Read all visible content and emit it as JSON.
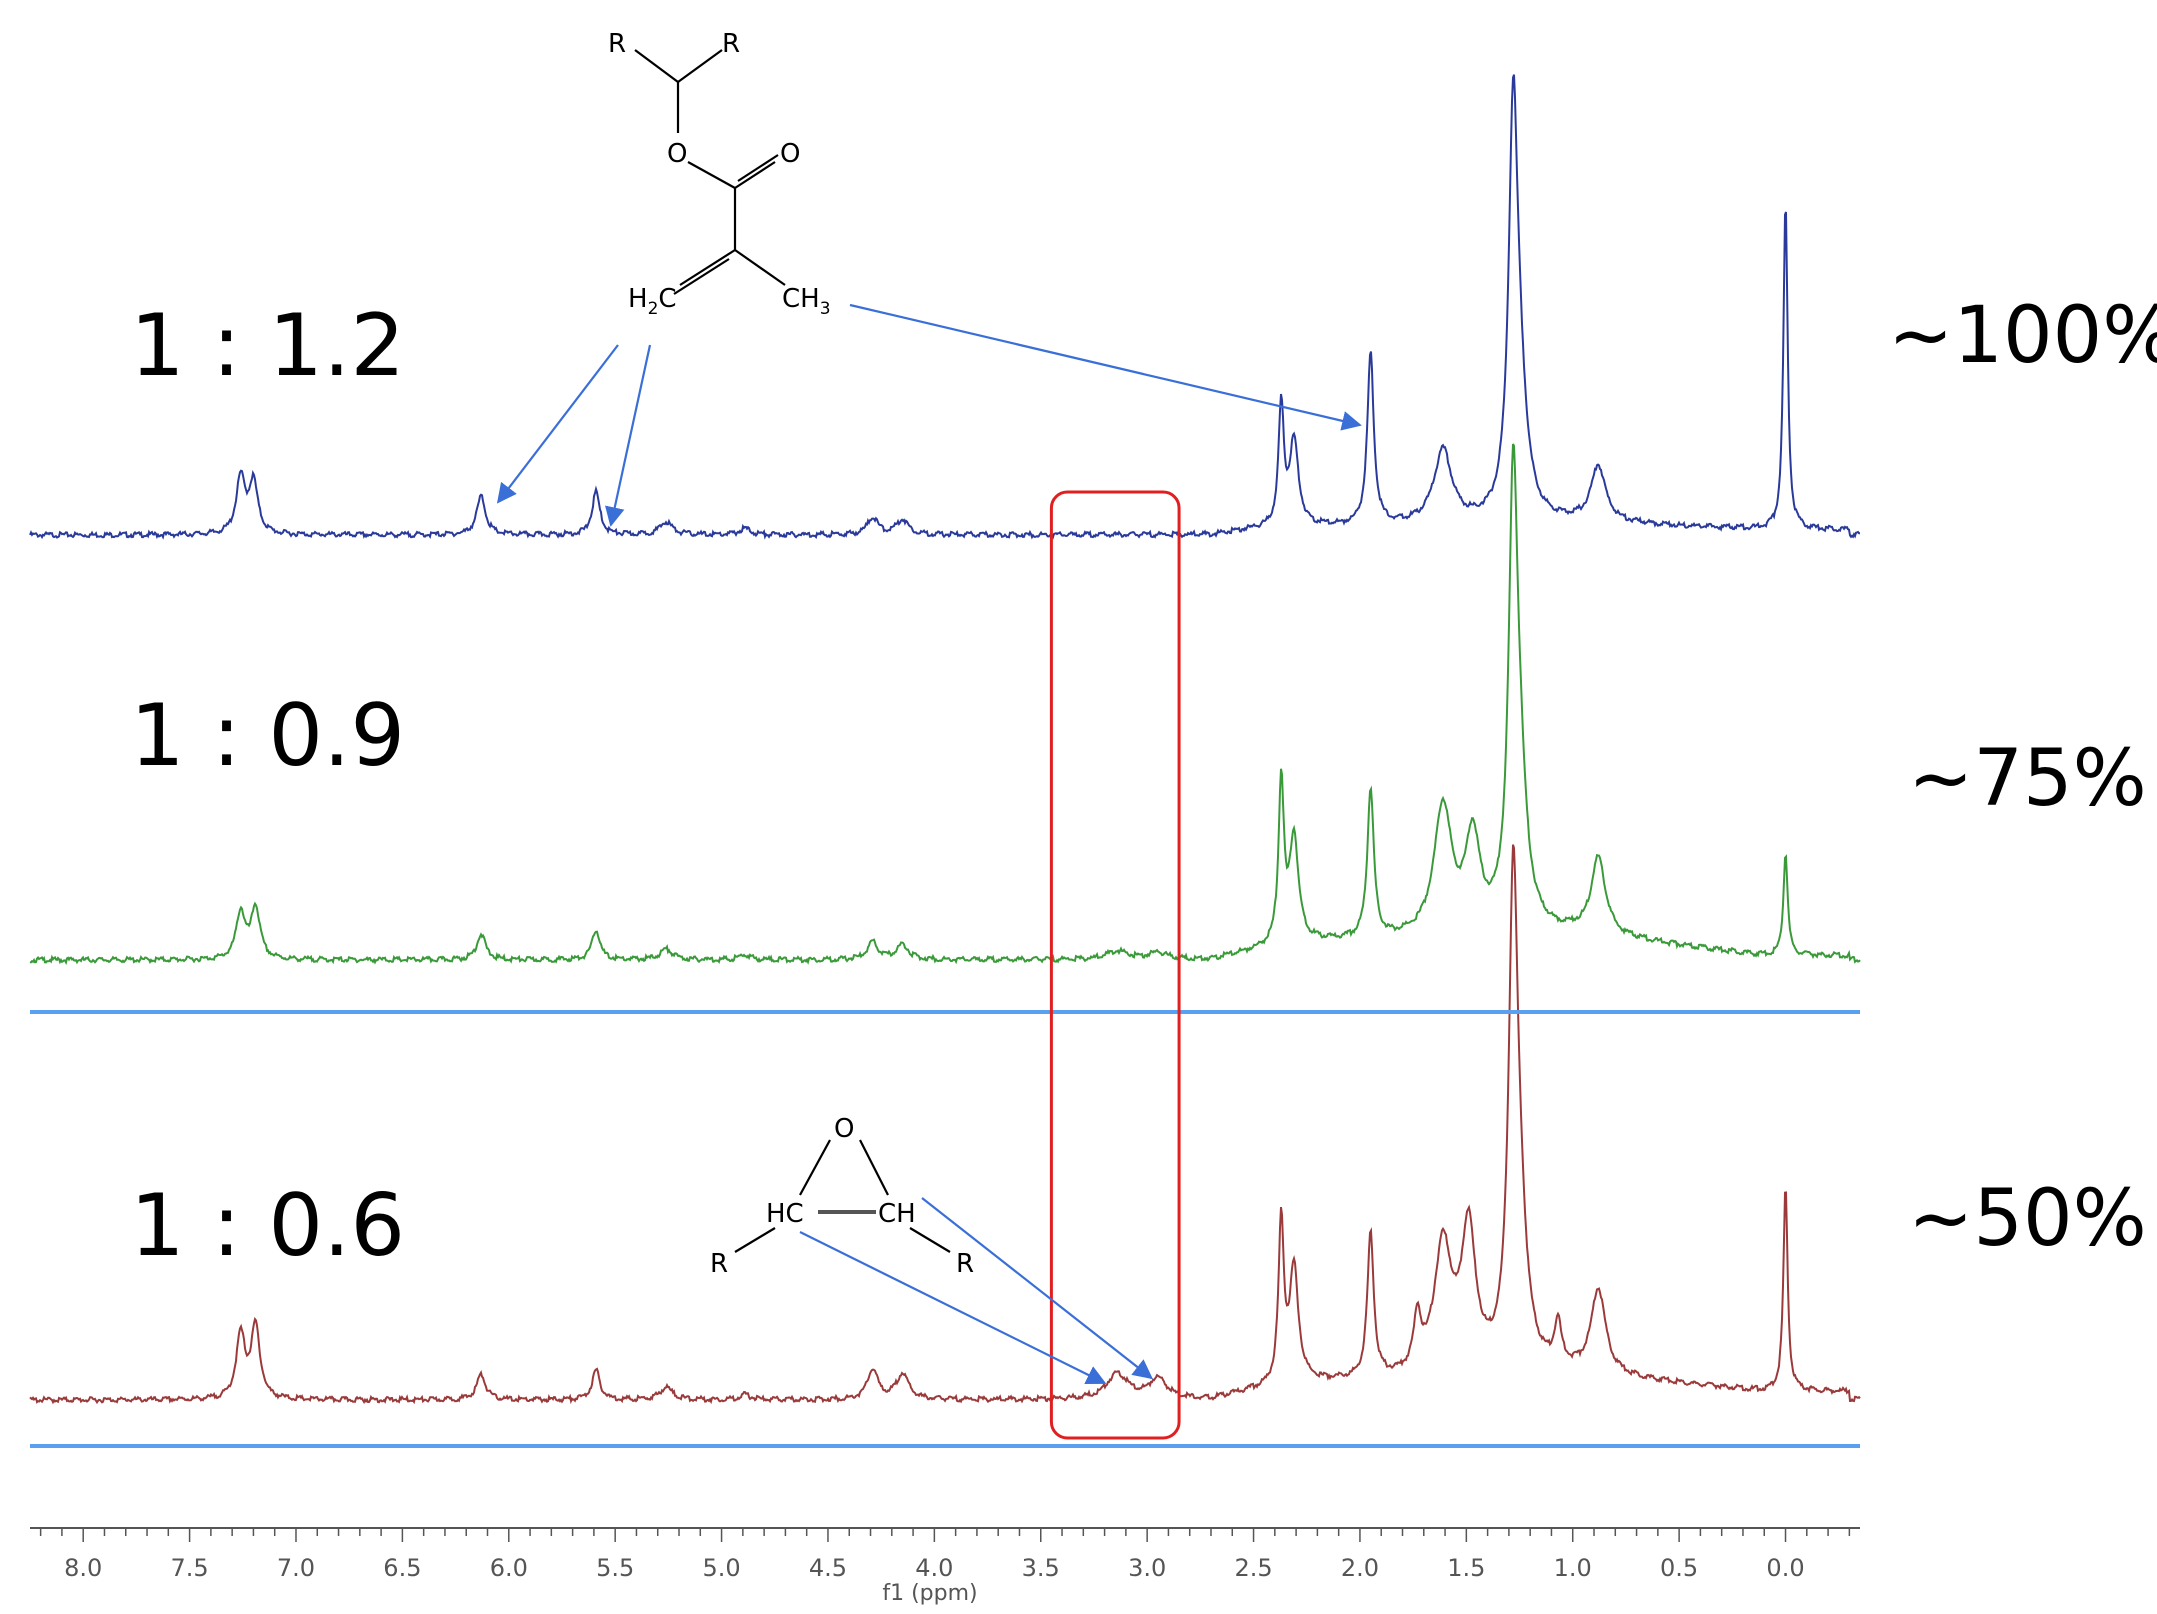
{
  "chart_data": {
    "type": "line",
    "xlabel": "f1 (ppm)",
    "xlim": [
      8.25,
      -0.35
    ],
    "x_reversed": true,
    "x_ticks": [
      "8.0",
      "7.5",
      "7.0",
      "6.5",
      "6.0",
      "5.5",
      "5.0",
      "4.5",
      "4.0",
      "3.5",
      "3.0",
      "2.5",
      "2.0",
      "1.5",
      "1.0",
      "0.5",
      "0.0"
    ],
    "grid": false,
    "legend": "none",
    "highlight_region_ppm": [
      3.45,
      2.85
    ],
    "series": [
      {
        "ratio": "1 : 1.2",
        "conversion": "~100%",
        "color": "#2a3a9a",
        "epoxide_height": 0.0,
        "peaks": [
          {
            "ppm": 7.26,
            "h": 0.13,
            "w": 0.025
          },
          {
            "ppm": 7.2,
            "h": 0.12,
            "w": 0.025
          },
          {
            "ppm": 6.13,
            "h": 0.09,
            "w": 0.025
          },
          {
            "ppm": 5.59,
            "h": 0.1,
            "w": 0.022
          },
          {
            "ppm": 5.26,
            "h": 0.03,
            "w": 0.035
          },
          {
            "ppm": 4.89,
            "h": 0.015,
            "w": 0.03
          },
          {
            "ppm": 4.29,
            "h": 0.04,
            "w": 0.03
          },
          {
            "ppm": 4.15,
            "h": 0.035,
            "w": 0.035
          },
          {
            "ppm": 2.37,
            "h": 0.28,
            "w": 0.015
          },
          {
            "ppm": 2.31,
            "h": 0.2,
            "w": 0.025
          },
          {
            "ppm": 1.95,
            "h": 0.4,
            "w": 0.018
          },
          {
            "ppm": 1.61,
            "h": 0.17,
            "w": 0.05
          },
          {
            "ppm": 1.28,
            "h": 0.88,
            "w": 0.025
          },
          {
            "ppm": 1.25,
            "h": 0.25,
            "w": 0.04
          },
          {
            "ppm": 0.88,
            "h": 0.13,
            "w": 0.04
          },
          {
            "ppm": 0.0,
            "h": 0.76,
            "w": 0.012
          }
        ]
      },
      {
        "ratio": "1 : 0.9",
        "conversion": "~75%",
        "color": "#3a9a3a",
        "epoxide_height": 0.02,
        "peaks": [
          {
            "ppm": 7.26,
            "h": 0.11,
            "w": 0.025
          },
          {
            "ppm": 7.19,
            "h": 0.12,
            "w": 0.025
          },
          {
            "ppm": 6.13,
            "h": 0.06,
            "w": 0.025
          },
          {
            "ppm": 5.59,
            "h": 0.07,
            "w": 0.022
          },
          {
            "ppm": 5.26,
            "h": 0.025,
            "w": 0.035
          },
          {
            "ppm": 4.89,
            "h": 0.012,
            "w": 0.03
          },
          {
            "ppm": 4.29,
            "h": 0.04,
            "w": 0.03
          },
          {
            "ppm": 4.15,
            "h": 0.035,
            "w": 0.035
          },
          {
            "ppm": 2.37,
            "h": 0.38,
            "w": 0.015
          },
          {
            "ppm": 2.31,
            "h": 0.25,
            "w": 0.025
          },
          {
            "ppm": 1.95,
            "h": 0.35,
            "w": 0.018
          },
          {
            "ppm": 1.61,
            "h": 0.3,
            "w": 0.05
          },
          {
            "ppm": 1.47,
            "h": 0.22,
            "w": 0.04
          },
          {
            "ppm": 1.28,
            "h": 0.95,
            "w": 0.025
          },
          {
            "ppm": 1.25,
            "h": 0.28,
            "w": 0.04
          },
          {
            "ppm": 0.88,
            "h": 0.18,
            "w": 0.04
          },
          {
            "ppm": 0.0,
            "h": 0.24,
            "w": 0.012
          }
        ]
      },
      {
        "ratio": "1 : 0.6",
        "conversion": "~50%",
        "color": "#9a3a3a",
        "epoxide_height": 0.06,
        "peaks": [
          {
            "ppm": 7.26,
            "h": 0.15,
            "w": 0.025
          },
          {
            "ppm": 7.19,
            "h": 0.17,
            "w": 0.025
          },
          {
            "ppm": 6.13,
            "h": 0.06,
            "w": 0.025
          },
          {
            "ppm": 5.59,
            "h": 0.07,
            "w": 0.022
          },
          {
            "ppm": 5.26,
            "h": 0.03,
            "w": 0.035
          },
          {
            "ppm": 4.89,
            "h": 0.012,
            "w": 0.03
          },
          {
            "ppm": 4.29,
            "h": 0.07,
            "w": 0.03
          },
          {
            "ppm": 4.15,
            "h": 0.06,
            "w": 0.035
          },
          {
            "ppm": 2.37,
            "h": 0.38,
            "w": 0.015
          },
          {
            "ppm": 2.31,
            "h": 0.27,
            "w": 0.025
          },
          {
            "ppm": 1.95,
            "h": 0.34,
            "w": 0.018
          },
          {
            "ppm": 1.73,
            "h": 0.12,
            "w": 0.02
          },
          {
            "ppm": 1.61,
            "h": 0.3,
            "w": 0.05
          },
          {
            "ppm": 1.49,
            "h": 0.33,
            "w": 0.04
          },
          {
            "ppm": 1.28,
            "h": 1.05,
            "w": 0.025
          },
          {
            "ppm": 1.25,
            "h": 0.28,
            "w": 0.04
          },
          {
            "ppm": 1.07,
            "h": 0.1,
            "w": 0.02
          },
          {
            "ppm": 0.88,
            "h": 0.2,
            "w": 0.04
          },
          {
            "ppm": 0.0,
            "h": 0.48,
            "w": 0.012
          }
        ]
      }
    ],
    "annotations": {
      "methacrylate": {
        "labels": [
          "R",
          "R",
          "O",
          "O",
          "H",
          "2",
          "C",
          "CH",
          "3"
        ],
        "arrows_to_ppm": [
          6.05,
          5.52,
          2.0
        ]
      },
      "epoxide": {
        "labels": [
          "O",
          "HC",
          "CH",
          "R",
          "R"
        ],
        "arrows_to_ppm": [
          3.2,
          2.98
        ]
      }
    },
    "colors": {
      "arrow": "#3a6fd8",
      "highlight_box": "#e02020",
      "separator": "#5aa0f0",
      "axis": "#555555"
    }
  }
}
